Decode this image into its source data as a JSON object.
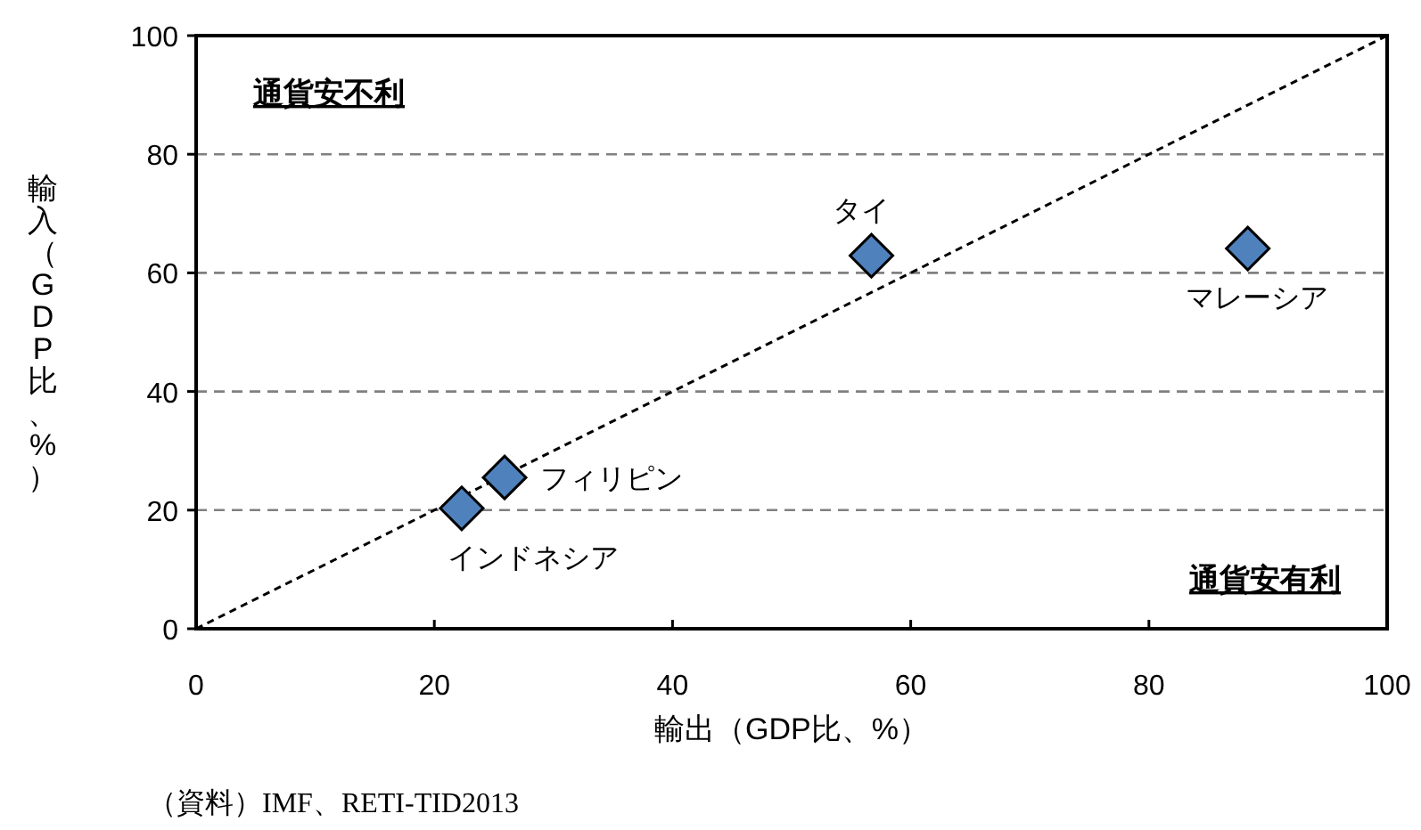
{
  "chart_data": {
    "type": "scatter",
    "xlabel": "輸出（GDP比、%）",
    "ylabel": "輸入（GDP比、%）",
    "xlim": [
      0,
      100
    ],
    "ylim": [
      0,
      100
    ],
    "xticks": [
      0,
      20,
      40,
      60,
      80,
      100
    ],
    "yticks": [
      0,
      20,
      40,
      60,
      80,
      100
    ],
    "grid": "y",
    "marker": "diamond",
    "series": [
      {
        "type": "line",
        "color": "#000000",
        "line_style": "dashed",
        "marker": "none",
        "x": [
          0,
          100
        ],
        "values": [
          0,
          100
        ]
      },
      {
        "name": "インドネシア",
        "color": "#4f81bd",
        "x": [
          22.3
        ],
        "values": [
          20.3
        ]
      },
      {
        "name": "フィリピン",
        "color": "#4f81bd",
        "x": [
          25.9
        ],
        "values": [
          25.5
        ]
      },
      {
        "name": "タイ",
        "color": "#4f81bd",
        "x": [
          56.7
        ],
        "values": [
          62.9
        ]
      },
      {
        "name": "マレーシア",
        "color": "#4f81bd",
        "x": [
          88.3
        ],
        "values": [
          64.1
        ]
      }
    ],
    "annotations": [
      "通貨安不利",
      "通貨安有利",
      "（資料）IMF、RETI-TID2013"
    ]
  }
}
